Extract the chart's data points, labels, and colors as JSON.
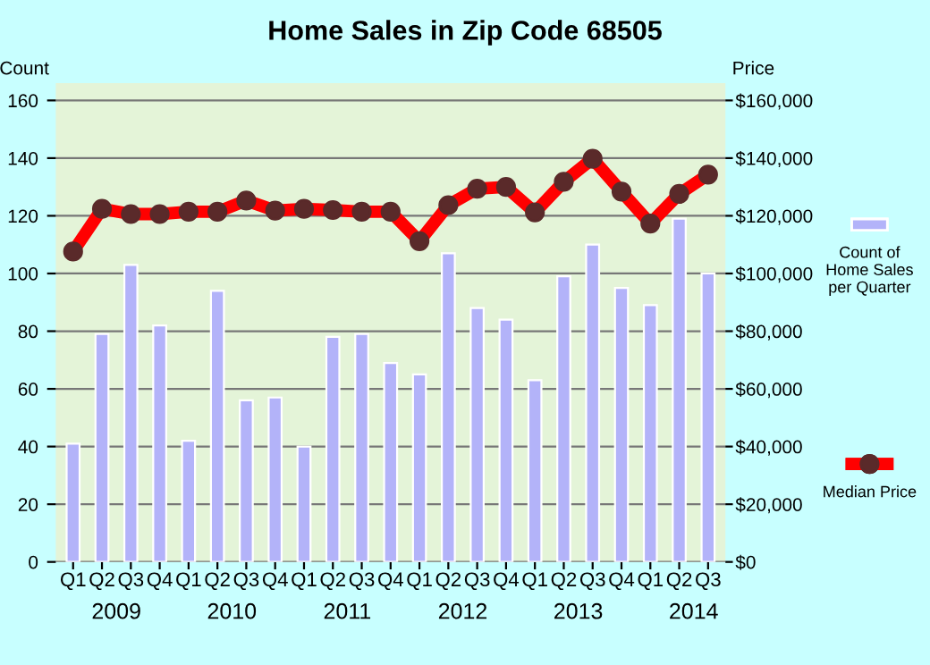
{
  "chart_data": {
    "type": "bar",
    "title": "Home Sales in Zip Code 68505",
    "ylabel": "Count",
    "y2label": "Price",
    "categories": [
      "Q1",
      "Q2",
      "Q3",
      "Q4",
      "Q1",
      "Q2",
      "Q3",
      "Q4",
      "Q1",
      "Q2",
      "Q3",
      "Q4",
      "Q1",
      "Q2",
      "Q3",
      "Q4",
      "Q1",
      "Q2",
      "Q3",
      "Q4",
      "Q1",
      "Q2",
      "Q3"
    ],
    "annotations": [
      "2009",
      "2010",
      "2011",
      "2012",
      "2013",
      "2014"
    ],
    "series": [
      {
        "name": "Count of\nHome Sales\nper Quarter",
        "color": "#b3b3f9",
        "values": [
          41,
          79,
          103,
          82,
          42,
          94,
          56,
          57,
          40,
          78,
          79,
          69,
          65,
          107,
          88,
          84,
          63,
          99,
          110,
          95,
          89,
          119,
          100
        ]
      },
      {
        "name": "Median Price",
        "type": "line",
        "axis": "y2",
        "color": "#ff0000",
        "marker": "circle",
        "values": [
          107600,
          122400,
          120600,
          120600,
          121400,
          121400,
          125300,
          121800,
          122400,
          122000,
          121400,
          121400,
          111200,
          123700,
          129400,
          130000,
          121200,
          131800,
          139800,
          128400,
          117300,
          127600,
          134300
        ]
      }
    ],
    "ylim": [
      0,
      166
    ],
    "yticks": [
      0,
      20,
      40,
      60,
      80,
      100,
      120,
      140,
      160
    ],
    "y2lim": [
      0,
      166000
    ],
    "y2ticks": [
      {
        "value": 0,
        "label": "$0"
      },
      {
        "value": 20000,
        "label": "$20,000"
      },
      {
        "value": 40000,
        "label": "$40,000"
      },
      {
        "value": 60000,
        "label": "$60,000"
      },
      {
        "value": 80000,
        "label": "$80,000"
      },
      {
        "value": 100000,
        "label": "$100,000"
      },
      {
        "value": 120000,
        "label": "$120,000"
      },
      {
        "value": 140000,
        "label": "$140,000"
      },
      {
        "value": 160000,
        "label": "$160,000"
      }
    ],
    "grid": "y",
    "legend": "right"
  }
}
